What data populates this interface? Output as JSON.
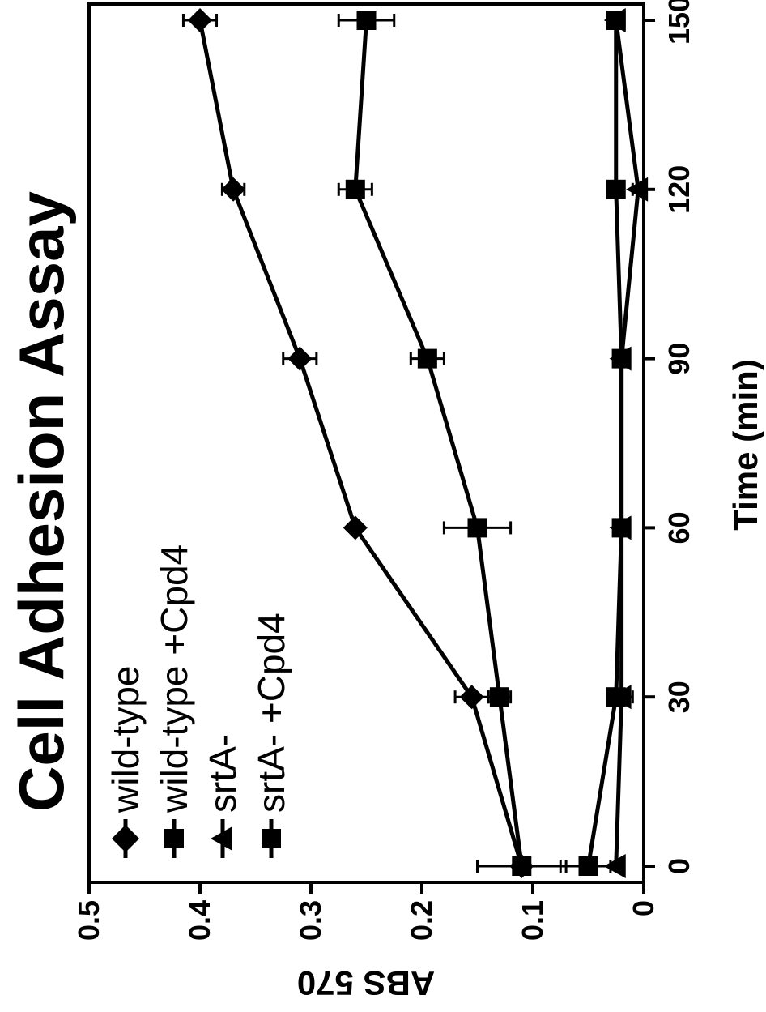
{
  "chart_data": {
    "type": "line",
    "orientation": "rotated 90 degrees counter-clockwise",
    "title": "Cell Adhesion Assay",
    "xlabel": "Time (min)",
    "ylabel": "ABS 570",
    "xlim": [
      0,
      150
    ],
    "ylim": [
      0,
      0.5
    ],
    "x_ticks": [
      "0",
      "30",
      "60",
      "90",
      "120",
      "150"
    ],
    "y_ticks": [
      "0",
      "0.1",
      "0.2",
      "0.3",
      "0.4",
      "0.5"
    ],
    "x": [
      0,
      30,
      60,
      90,
      120,
      150
    ],
    "grid": false,
    "legend_position": "upper-left",
    "series": [
      {
        "name": "wild-type",
        "marker": "diamond",
        "values": [
          0.11,
          0.155,
          0.26,
          0.31,
          0.37,
          0.4
        ],
        "errors": [
          0.005,
          0.015,
          0.0,
          0.015,
          0.01,
          0.015
        ]
      },
      {
        "name": "wild-type +Cpd4",
        "marker": "square",
        "values": [
          0.11,
          0.13,
          0.15,
          0.195,
          0.26,
          0.25
        ],
        "errors": [
          0.04,
          0.01,
          0.03,
          0.015,
          0.015,
          0.025
        ]
      },
      {
        "name": "srtA-",
        "marker": "triangle",
        "values": [
          0.025,
          0.02,
          0.02,
          0.02,
          0.005,
          0.025
        ],
        "errors": [
          0.005,
          0.01,
          0.005,
          0.005,
          0.005,
          0.003
        ]
      },
      {
        "name": "srtA- +Cpd4",
        "marker": "square",
        "values": [
          0.05,
          0.025,
          0.02,
          0.02,
          0.025,
          0.025
        ],
        "errors": [
          0.025,
          0.005,
          0.005,
          0.005,
          0.005,
          0.003
        ]
      }
    ]
  }
}
